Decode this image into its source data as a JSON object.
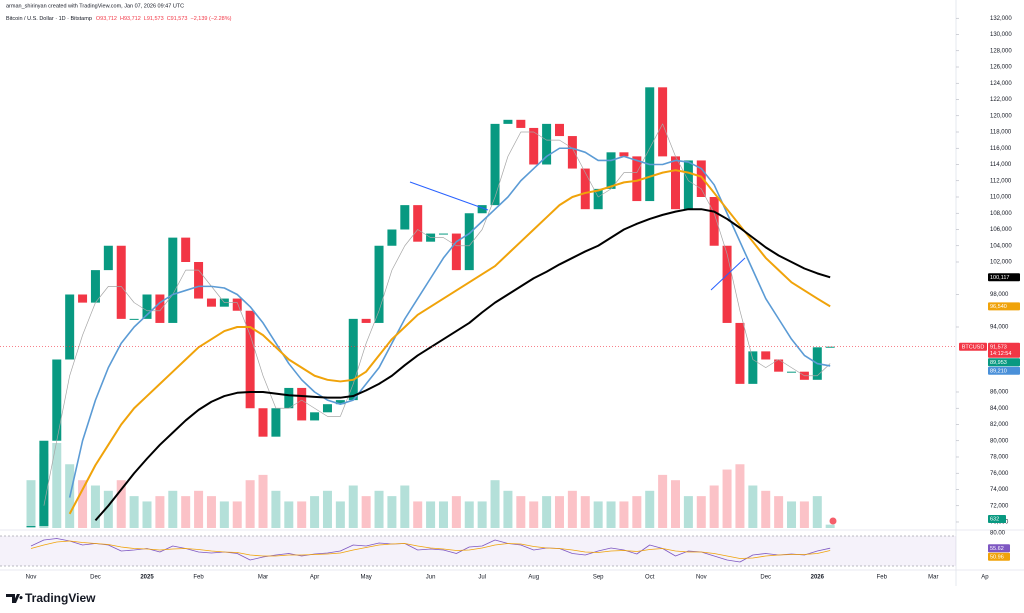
{
  "header": {
    "attribution": "arman_shirinyan created with TradingView.com, Jan 07, 2026 09:47 UTC",
    "symbol": "Bitcoin / U.S. Dollar · 1D · Bitstamp",
    "ohlc": [
      "O93,712",
      "H93,712",
      "L91,573",
      "C91,573",
      "−2,139 (−2.28%)"
    ]
  },
  "chart_data": {
    "type": "candlestick",
    "grid": false,
    "categories": [
      "Nov",
      null,
      null,
      null,
      null,
      "Dec",
      null,
      null,
      null,
      "2025",
      null,
      null,
      null,
      "Feb",
      null,
      null,
      null,
      null,
      "Mar",
      null,
      null,
      null,
      "Apr",
      null,
      null,
      null,
      "May",
      null,
      null,
      null,
      null,
      "Jun",
      null,
      null,
      null,
      "Jul",
      null,
      null,
      null,
      "Aug",
      null,
      null,
      null,
      null,
      "Sep",
      null,
      null,
      null,
      "Oct",
      null,
      null,
      null,
      "Nov",
      null,
      null,
      null,
      null,
      "Dec",
      null,
      null,
      null,
      "2026",
      null,
      null,
      null,
      null,
      "Feb",
      null,
      null,
      null,
      "Mar",
      null,
      null,
      null,
      "Ap"
    ],
    "series": [
      {
        "style": "candles",
        "color": "#089981",
        "down_color": "#f23645",
        "values": [
          69500,
          80000,
          90000,
          98000,
          97000,
          101000,
          104000,
          95000,
          95000,
          98000,
          94500,
          105000,
          102000,
          97500,
          96500,
          97500,
          96000,
          84000,
          80500,
          84000,
          86500,
          82500,
          83500,
          84500,
          85000,
          95000,
          94500,
          104000,
          106000,
          109000,
          104500,
          105500,
          105500,
          101000,
          108000,
          109000,
          119000,
          119500,
          118500,
          114000,
          119000,
          117500,
          113500,
          108500,
          111000,
          115500,
          115000,
          109500,
          123500,
          115000,
          108500,
          114500,
          110000,
          104000,
          94500,
          87000,
          91000,
          90000,
          88500,
          88500,
          87500,
          91500,
          91573,
          null,
          null,
          null,
          null,
          null,
          null,
          null,
          null,
          null,
          null,
          null,
          null
        ]
      },
      {
        "style": "line",
        "color": "#a6a6a6",
        "width": 0.7,
        "values": [
          null,
          72000,
          80000,
          88000,
          93000,
          97000,
          99000,
          99000,
          97000,
          96000,
          96000,
          98000,
          101000,
          101000,
          99000,
          97000,
          97000,
          93000,
          88000,
          84000,
          84000,
          85000,
          84000,
          83000,
          83000,
          87000,
          92000,
          96000,
          101000,
          104000,
          106000,
          105000,
          105000,
          104000,
          104000,
          106000,
          110000,
          115000,
          118000,
          118000,
          117000,
          117000,
          116000,
          113000,
          110000,
          111000,
          113000,
          113000,
          116000,
          119000,
          115000,
          112000,
          111000,
          108000,
          103000,
          96000,
          90000,
          89000,
          90000,
          89000,
          88000,
          88000,
          89500,
          null,
          null,
          null,
          null,
          null,
          null,
          null,
          null,
          null,
          null,
          null,
          null
        ]
      },
      {
        "style": "line",
        "color": "#5b9bd5",
        "width": 1.6,
        "values": [
          null,
          null,
          null,
          73000,
          80000,
          85000,
          89000,
          92000,
          94000,
          95500,
          97000,
          98000,
          98500,
          99000,
          99000,
          98800,
          98000,
          96500,
          94500,
          92000,
          89500,
          87500,
          86000,
          85000,
          84500,
          85000,
          87000,
          89000,
          92000,
          95000,
          97500,
          100000,
          102500,
          104500,
          105500,
          107000,
          108500,
          110000,
          112000,
          113500,
          115000,
          116000,
          116000,
          115500,
          114500,
          114500,
          115000,
          114500,
          114000,
          114000,
          114500,
          114300,
          113500,
          111500,
          108000,
          104500,
          101000,
          97500,
          95000,
          92500,
          90500,
          89500,
          89210,
          null,
          null,
          null,
          null,
          null,
          null,
          null,
          null,
          null,
          null,
          null,
          null
        ]
      },
      {
        "style": "line",
        "color": "#f0a30a",
        "width": 2,
        "values": [
          null,
          null,
          null,
          71000,
          74000,
          77000,
          79500,
          82000,
          84000,
          85500,
          87000,
          88500,
          90000,
          91500,
          92500,
          93500,
          94000,
          94000,
          93000,
          91500,
          90000,
          89000,
          88000,
          87500,
          87300,
          87500,
          88500,
          90500,
          92500,
          94000,
          95500,
          96500,
          97500,
          98500,
          99500,
          100500,
          101500,
          103000,
          104500,
          106000,
          107500,
          109000,
          110000,
          110500,
          110800,
          111300,
          111800,
          112000,
          112500,
          113000,
          113300,
          113000,
          112500,
          110500,
          108500,
          106500,
          104500,
          102500,
          101000,
          99500,
          98500,
          97500,
          96540,
          null,
          null,
          null,
          null,
          null,
          null,
          null,
          null,
          null,
          null,
          null,
          null
        ]
      },
      {
        "style": "line",
        "color": "#000000",
        "width": 2,
        "values": [
          null,
          null,
          null,
          null,
          null,
          70200,
          72000,
          74000,
          76000,
          77800,
          79500,
          81000,
          82500,
          83800,
          84800,
          85500,
          85900,
          86000,
          86000,
          85800,
          85600,
          85500,
          85400,
          85300,
          85300,
          85500,
          86200,
          87000,
          88000,
          89300,
          90500,
          91500,
          92500,
          93500,
          94500,
          95800,
          97000,
          98000,
          99000,
          100000,
          100800,
          101700,
          102500,
          103300,
          104000,
          105000,
          106000,
          106700,
          107300,
          107800,
          108200,
          108500,
          108500,
          108200,
          107300,
          106200,
          105000,
          103800,
          102800,
          102000,
          101200,
          100600,
          100117,
          null,
          null,
          null,
          null,
          null,
          null,
          null,
          null,
          null,
          null,
          null,
          null
        ]
      }
    ],
    "ylim": [
      69260,
      132770
    ],
    "yticks": [
      {
        "value": 132000,
        "label": "132,000"
      },
      {
        "value": 130000,
        "label": "130,000"
      },
      {
        "value": 128000,
        "label": "128,000"
      },
      {
        "value": 126000,
        "label": "126,000"
      },
      {
        "value": 124000,
        "label": "124,000"
      },
      {
        "value": 122000,
        "label": "122,000"
      },
      {
        "value": 120000,
        "label": "120,000"
      },
      {
        "value": 118000,
        "label": "118,000"
      },
      {
        "value": 116000,
        "label": "116,000"
      },
      {
        "value": 114000,
        "label": "114,000"
      },
      {
        "value": 112000,
        "label": "112,000"
      },
      {
        "value": 110000,
        "label": "110,000"
      },
      {
        "value": 108000,
        "label": "108,000"
      },
      {
        "value": 106000,
        "label": "106,000"
      },
      {
        "value": 104000,
        "label": "104,000"
      },
      {
        "value": 102000,
        "label": "102,000"
      },
      {
        "value": 98000,
        "label": "98,000"
      },
      {
        "value": 94000,
        "label": "94,000"
      },
      {
        "value": 86000,
        "label": "86,000"
      },
      {
        "value": 84000,
        "label": "84,000"
      },
      {
        "value": 82000,
        "label": "82,000"
      },
      {
        "value": 80000,
        "label": "80,000"
      },
      {
        "value": 78000,
        "label": "78,000"
      },
      {
        "value": 76000,
        "label": "76,000"
      },
      {
        "value": 74000,
        "label": "74,000"
      },
      {
        "value": 72000,
        "label": "72,000"
      },
      {
        "value": 70000,
        "label": "70,000"
      }
    ],
    "price_labels": [
      {
        "value": 100117,
        "label": "100,117",
        "color": "#000000"
      },
      {
        "value": 96540,
        "label": "96,540",
        "color": "#f0a30a"
      },
      {
        "value": 91573,
        "label": "91,573",
        "color": "#f23645",
        "symbol": "BTCUSD",
        "countdown": "14:12:54"
      },
      {
        "value": 89953,
        "label": "89,953",
        "color": "#089981"
      },
      {
        "value": 89210,
        "label": "89,210",
        "color": "#4a90d9"
      }
    ],
    "volume": {
      "values": [
        9000,
        14000,
        16000,
        12000,
        9000,
        8000,
        7000,
        9000,
        6000,
        5000,
        6000,
        7000,
        6000,
        7000,
        6000,
        5000,
        5000,
        9000,
        10000,
        7000,
        5000,
        5000,
        6000,
        7000,
        5000,
        8000,
        6000,
        7000,
        6000,
        8000,
        5000,
        5000,
        5000,
        6000,
        5000,
        5000,
        9000,
        7000,
        6000,
        5000,
        6000,
        6000,
        7000,
        6000,
        5000,
        5000,
        5000,
        6000,
        7000,
        10000,
        9000,
        6000,
        6000,
        8000,
        11000,
        12000,
        8000,
        7000,
        6000,
        5000,
        5000,
        6000,
        632,
        null,
        null,
        null,
        null,
        null,
        null,
        null,
        null,
        null,
        null,
        null,
        null
      ],
      "last_label": "632"
    },
    "rsi": {
      "color": "#7e57c2",
      "ma_color": "#f0a30a",
      "ylim": [
        14,
        86
      ],
      "yticks": [
        {
          "value": 80,
          "label": "80.00"
        }
      ],
      "bands": [
        80,
        20
      ],
      "values": [
        60,
        72,
        75,
        70,
        62,
        65,
        62,
        50,
        52,
        55,
        48,
        60,
        55,
        48,
        46,
        48,
        45,
        32,
        38,
        42,
        45,
        40,
        44,
        46,
        50,
        62,
        60,
        66,
        64,
        65,
        52,
        54,
        52,
        45,
        58,
        60,
        72,
        65,
        62,
        52,
        56,
        55,
        45,
        42,
        50,
        56,
        52,
        44,
        62,
        55,
        40,
        50,
        48,
        40,
        32,
        28,
        42,
        45,
        42,
        44,
        42,
        50,
        55.62,
        null,
        null,
        null,
        null,
        null,
        null,
        null,
        null,
        null,
        null,
        null,
        null
      ],
      "ma_values": [
        55,
        62,
        68,
        70,
        67,
        65,
        63,
        58,
        55,
        54,
        52,
        54,
        55,
        53,
        50,
        48,
        47,
        42,
        40,
        40,
        42,
        42,
        43,
        44,
        46,
        52,
        57,
        62,
        64,
        65,
        60,
        56,
        54,
        51,
        52,
        56,
        62,
        65,
        64,
        59,
        56,
        55,
        52,
        48,
        47,
        50,
        51,
        49,
        53,
        55,
        50,
        48,
        48,
        45,
        40,
        35,
        36,
        40,
        42,
        43,
        43,
        45,
        50.96,
        null,
        null,
        null,
        null,
        null,
        null,
        null,
        null,
        null,
        null,
        null,
        null
      ],
      "last_labels": [
        "55.62",
        "50.96"
      ]
    }
  },
  "footer": {
    "logo": "TradingView"
  }
}
